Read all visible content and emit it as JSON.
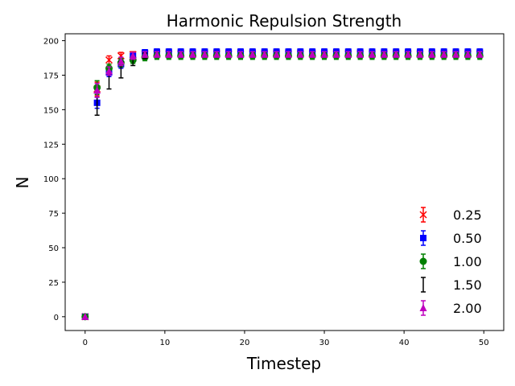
{
  "chart_data": {
    "type": "scatter",
    "title": "Harmonic Repulsion Strength",
    "xlabel": "Timestep",
    "ylabel": "N",
    "xlim": [
      -2.5,
      52.5
    ],
    "ylim": [
      -10,
      205
    ],
    "xticks": [
      0,
      10,
      20,
      30,
      40,
      50
    ],
    "yticks": [
      0,
      25,
      50,
      75,
      100,
      125,
      150,
      175,
      200
    ],
    "grid": false,
    "legend_position": "lower right",
    "x": [
      0,
      1.5,
      3,
      4.5,
      6,
      7.5,
      9,
      10.5,
      12,
      13.5,
      15,
      16.5,
      18,
      19.5,
      21,
      22.5,
      24,
      25.5,
      27,
      28.5,
      30,
      31.5,
      33,
      34.5,
      36,
      37.5,
      39,
      40.5,
      42,
      43.5,
      45,
      46.5,
      48,
      49.5
    ],
    "series": [
      {
        "name": "0.25",
        "color": "#ff0000",
        "marker": "x",
        "values": [
          0,
          165,
          186,
          189,
          190,
          190.5,
          190.5,
          190.5,
          190.5,
          190.5,
          190.5,
          190.5,
          190.5,
          190.5,
          190.5,
          190.5,
          190.5,
          190.5,
          190.5,
          190.5,
          190.5,
          190.5,
          190.5,
          190.5,
          190.5,
          190.5,
          190.5,
          190.5,
          190.5,
          190.5,
          190.5,
          190.5,
          190.5,
          190.5
        ],
        "errors": [
          0,
          5,
          3,
          2.5,
          2,
          1.5,
          1.5,
          1.5,
          1.5,
          1.5,
          1.5,
          1.5,
          1.5,
          1.5,
          1.5,
          1.5,
          1.5,
          1.5,
          1.5,
          1.5,
          1.5,
          1.5,
          1.5,
          1.5,
          1.5,
          1.5,
          1.5,
          1.5,
          1.5,
          1.5,
          1.5,
          1.5,
          1.5,
          1.5
        ]
      },
      {
        "name": "0.50",
        "color": "#0000ff",
        "marker": "square",
        "values": [
          0,
          155,
          177,
          183,
          189,
          191.5,
          192,
          192,
          192,
          192,
          192,
          192,
          192,
          192,
          192,
          192,
          192,
          192,
          192,
          192,
          192,
          192,
          192,
          192,
          192,
          192,
          192,
          192,
          192,
          192,
          192,
          192,
          192,
          192
        ],
        "errors": [
          0,
          4,
          3,
          3,
          2,
          2,
          2,
          2,
          2,
          2,
          2,
          2,
          2,
          2,
          2,
          2,
          2,
          2,
          2,
          2,
          2,
          2,
          2,
          2,
          2,
          2,
          2,
          2,
          2,
          2,
          2,
          2,
          2,
          2
        ]
      },
      {
        "name": "1.00",
        "color": "#008000",
        "marker": "circle",
        "values": [
          0,
          166,
          180,
          184,
          186,
          188,
          189,
          189,
          189,
          189,
          189,
          189,
          189,
          189,
          189,
          189,
          189,
          189,
          189,
          189,
          189,
          189,
          189,
          189,
          189,
          189,
          189,
          189,
          189,
          189,
          189,
          189,
          189,
          189
        ],
        "errors": [
          0,
          5,
          3,
          3,
          2.5,
          2.5,
          2.5,
          2.5,
          2.5,
          2.5,
          2.5,
          2.5,
          2.5,
          2.5,
          2.5,
          2.5,
          2.5,
          2.5,
          2.5,
          2.5,
          2.5,
          2.5,
          2.5,
          2.5,
          2.5,
          2.5,
          2.5,
          2.5,
          2.5,
          2.5,
          2.5,
          2.5,
          2.5,
          2.5
        ]
      },
      {
        "name": "1.50",
        "color": "#000000",
        "marker": "none",
        "values": [
          0,
          154,
          173,
          179,
          185,
          189,
          190,
          190,
          190,
          190,
          190,
          190,
          190,
          190,
          190,
          190,
          190,
          190,
          190,
          190,
          190,
          190,
          190,
          190,
          190,
          190,
          190,
          190,
          190,
          190,
          190,
          190,
          190,
          190
        ],
        "errors": [
          0,
          8,
          8,
          6,
          3,
          2,
          2,
          2,
          2,
          2,
          2,
          2,
          2,
          2,
          2,
          2,
          2,
          2,
          2,
          2,
          2,
          2,
          2,
          2,
          2,
          2,
          2,
          2,
          2,
          2,
          2,
          2,
          2,
          2
        ]
      },
      {
        "name": "2.00",
        "color": "#bf00bf",
        "marker": "triangle",
        "values": [
          0,
          164,
          178,
          185,
          189,
          190,
          190,
          190,
          190,
          190,
          190,
          190,
          190,
          190,
          190,
          190,
          190,
          190,
          190,
          190,
          190,
          190,
          190,
          190,
          190,
          190,
          190,
          190,
          190,
          190,
          190,
          190,
          190,
          190
        ],
        "errors": [
          0,
          5,
          3,
          3,
          2.5,
          2,
          2,
          2,
          2,
          2,
          2,
          2,
          2,
          2,
          2,
          2,
          2,
          2,
          2,
          2,
          2,
          2,
          2,
          2,
          2,
          2,
          2,
          2,
          2,
          2,
          2,
          2,
          2,
          2
        ]
      }
    ]
  }
}
